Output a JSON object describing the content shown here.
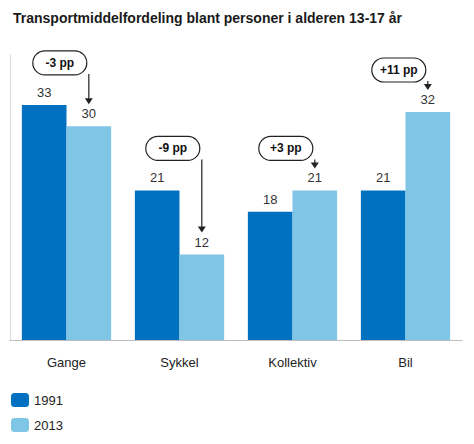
{
  "chart_data": {
    "type": "bar",
    "title": "Transportmiddelfordeling blant personer i alderen 13-17 år",
    "categories": [
      "Gange",
      "Sykkel",
      "Kollektiv",
      "Bil"
    ],
    "series": [
      {
        "name": "1991",
        "color": "#0070c0",
        "values": [
          33,
          21,
          18,
          21
        ]
      },
      {
        "name": "2013",
        "color": "#7fc6e6",
        "values": [
          30,
          12,
          21,
          32
        ]
      }
    ],
    "annotations": [
      "-3 pp",
      "-9 pp",
      "+3 pp",
      "+11 pp"
    ],
    "ylim": [
      0,
      40
    ],
    "grid": false,
    "data_labels": true,
    "tick_labels": "x",
    "legend": "bottom-left"
  }
}
